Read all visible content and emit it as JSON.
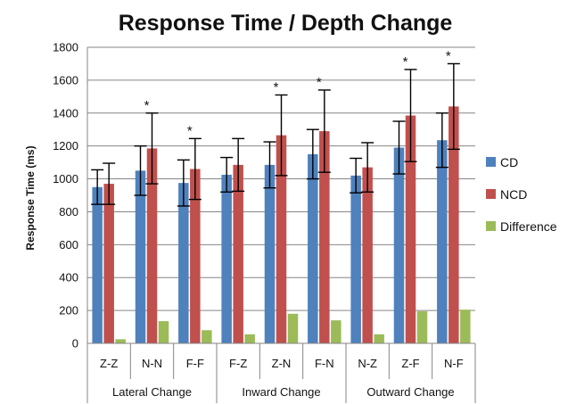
{
  "chart_data": {
    "type": "bar",
    "title": "Response Time / Depth Change",
    "ylabel": "Response Time (ms)",
    "xlabel": "",
    "ylim": [
      0,
      1800
    ],
    "yticks": [
      0,
      200,
      400,
      600,
      800,
      1000,
      1200,
      1400,
      1600,
      1800
    ],
    "grid": true,
    "legend_position": "right",
    "categories": [
      "Z-Z",
      "N-N",
      "F-F",
      "F-Z",
      "Z-N",
      "F-N",
      "N-Z",
      "Z-F",
      "N-F"
    ],
    "groups": [
      {
        "label": "Lateral Change",
        "count": 3
      },
      {
        "label": "Inward Change",
        "count": 3
      },
      {
        "label": "Outward Change",
        "count": 3
      }
    ],
    "series": [
      {
        "name": "CD",
        "color": "#4f81bd",
        "values": [
          950,
          1050,
          975,
          1025,
          1085,
          1150,
          1020,
          1190,
          1235
        ],
        "errors": [
          105,
          150,
          140,
          105,
          140,
          150,
          105,
          160,
          165
        ]
      },
      {
        "name": "NCD",
        "color": "#c0504d",
        "values": [
          970,
          1185,
          1060,
          1085,
          1265,
          1290,
          1070,
          1385,
          1440
        ],
        "errors": [
          125,
          215,
          185,
          160,
          245,
          250,
          150,
          280,
          260
        ]
      },
      {
        "name": "Difference",
        "color": "#9bbb59",
        "values": [
          25,
          135,
          80,
          55,
          180,
          140,
          55,
          195,
          205
        ],
        "errors": null
      }
    ],
    "significance_marker": "*",
    "significant": [
      false,
      true,
      true,
      false,
      true,
      true,
      false,
      true,
      true
    ]
  }
}
